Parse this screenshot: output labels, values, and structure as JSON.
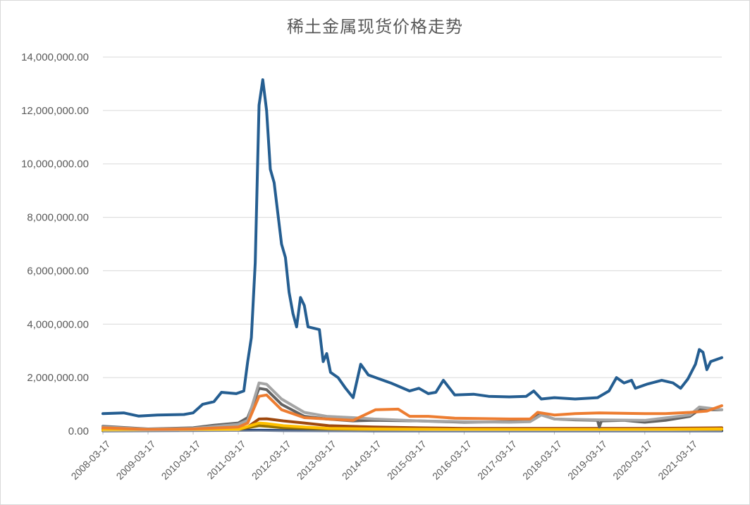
{
  "chart_data": {
    "type": "line",
    "title": "稀土金属现货价格走势",
    "xlabel": "",
    "ylabel": "",
    "ylim": [
      0,
      14000000
    ],
    "y_ticks": [
      "0.00",
      "2,000,000.00",
      "4,000,000.00",
      "6,000,000.00",
      "8,000,000.00",
      "10,000,000.00",
      "12,000,000.00",
      "14,000,000.00"
    ],
    "x_range": [
      "2008-03-17",
      "2021-11-30"
    ],
    "x_ticks": [
      "2008-03-17",
      "2009-03-17",
      "2010-03-17",
      "2011-03-17",
      "2012-03-17",
      "2013-03-17",
      "2014-03-17",
      "2015-03-17",
      "2016-03-17",
      "2017-03-17",
      "2018-03-17",
      "2019-03-17",
      "2020-03-17",
      "2021-03-17"
    ],
    "grid": true,
    "legend": "none",
    "series": [
      {
        "color": "#255e91",
        "points": [
          [
            "2008-03-17",
            650000
          ],
          [
            "2008-09-01",
            680000
          ],
          [
            "2009-01-01",
            560000
          ],
          [
            "2009-06-01",
            600000
          ],
          [
            "2010-01-01",
            620000
          ],
          [
            "2010-03-17",
            680000
          ],
          [
            "2010-06-01",
            1000000
          ],
          [
            "2010-09-01",
            1100000
          ],
          [
            "2010-11-01",
            1450000
          ],
          [
            "2011-03-01",
            1400000
          ],
          [
            "2011-05-01",
            1500000
          ],
          [
            "2011-06-01",
            2600000
          ],
          [
            "2011-07-01",
            3500000
          ],
          [
            "2011-08-01",
            6300000
          ],
          [
            "2011-09-01",
            12200000
          ],
          [
            "2011-10-01",
            13150000
          ],
          [
            "2011-11-01",
            12000000
          ],
          [
            "2011-12-01",
            9800000
          ],
          [
            "2012-01-01",
            9300000
          ],
          [
            "2012-03-01",
            7000000
          ],
          [
            "2012-04-01",
            6500000
          ],
          [
            "2012-05-01",
            5200000
          ],
          [
            "2012-06-01",
            4400000
          ],
          [
            "2012-07-01",
            3900000
          ],
          [
            "2012-08-01",
            5000000
          ],
          [
            "2012-09-01",
            4700000
          ],
          [
            "2012-10-01",
            3900000
          ],
          [
            "2013-01-01",
            3800000
          ],
          [
            "2013-02-01",
            2600000
          ],
          [
            "2013-03-01",
            2900000
          ],
          [
            "2013-04-01",
            2200000
          ],
          [
            "2013-06-01",
            2000000
          ],
          [
            "2013-08-01",
            1600000
          ],
          [
            "2013-10-01",
            1250000
          ],
          [
            "2013-12-01",
            2500000
          ],
          [
            "2014-02-01",
            2100000
          ],
          [
            "2014-05-01",
            1950000
          ],
          [
            "2014-08-01",
            1800000
          ],
          [
            "2015-01-01",
            1500000
          ],
          [
            "2015-03-17",
            1600000
          ],
          [
            "2015-06-01",
            1400000
          ],
          [
            "2015-08-01",
            1450000
          ],
          [
            "2015-10-01",
            1900000
          ],
          [
            "2016-01-01",
            1350000
          ],
          [
            "2016-06-01",
            1380000
          ],
          [
            "2016-10-01",
            1300000
          ],
          [
            "2017-03-17",
            1280000
          ],
          [
            "2017-08-01",
            1300000
          ],
          [
            "2017-10-01",
            1500000
          ],
          [
            "2017-12-01",
            1200000
          ],
          [
            "2018-03-17",
            1250000
          ],
          [
            "2018-09-01",
            1200000
          ],
          [
            "2019-03-01",
            1250000
          ],
          [
            "2019-06-01",
            1500000
          ],
          [
            "2019-08-01",
            2000000
          ],
          [
            "2019-10-01",
            1800000
          ],
          [
            "2019-12-01",
            1900000
          ],
          [
            "2020-01-01",
            1600000
          ],
          [
            "2020-04-01",
            1750000
          ],
          [
            "2020-08-01",
            1900000
          ],
          [
            "2020-11-01",
            1800000
          ],
          [
            "2021-01-01",
            1600000
          ],
          [
            "2021-03-01",
            1950000
          ],
          [
            "2021-05-01",
            2500000
          ],
          [
            "2021-06-01",
            3050000
          ],
          [
            "2021-07-01",
            2950000
          ],
          [
            "2021-08-01",
            2300000
          ],
          [
            "2021-09-01",
            2600000
          ],
          [
            "2021-11-30",
            2750000
          ]
        ]
      },
      {
        "color": "#ed7d31",
        "points": [
          [
            "2008-03-17",
            120000
          ],
          [
            "2009-03-17",
            60000
          ],
          [
            "2010-03-17",
            80000
          ],
          [
            "2011-03-17",
            150000
          ],
          [
            "2011-06-01",
            300000
          ],
          [
            "2011-09-01",
            1300000
          ],
          [
            "2011-11-01",
            1350000
          ],
          [
            "2012-03-01",
            800000
          ],
          [
            "2012-09-01",
            500000
          ],
          [
            "2013-03-01",
            450000
          ],
          [
            "2013-10-01",
            400000
          ],
          [
            "2014-01-01",
            600000
          ],
          [
            "2014-04-01",
            800000
          ],
          [
            "2014-10-01",
            820000
          ],
          [
            "2015-01-01",
            550000
          ],
          [
            "2015-06-01",
            550000
          ],
          [
            "2016-01-01",
            480000
          ],
          [
            "2017-03-17",
            450000
          ],
          [
            "2017-09-01",
            450000
          ],
          [
            "2017-11-01",
            700000
          ],
          [
            "2018-03-17",
            600000
          ],
          [
            "2018-09-01",
            650000
          ],
          [
            "2019-03-17",
            680000
          ],
          [
            "2020-03-17",
            650000
          ],
          [
            "2020-09-01",
            650000
          ],
          [
            "2021-03-17",
            700000
          ],
          [
            "2021-08-01",
            750000
          ],
          [
            "2021-11-30",
            950000
          ]
        ]
      },
      {
        "color": "#a5a5a5",
        "points": [
          [
            "2008-03-17",
            150000
          ],
          [
            "2009-03-17",
            70000
          ],
          [
            "2010-03-17",
            100000
          ],
          [
            "2011-03-17",
            250000
          ],
          [
            "2011-06-01",
            400000
          ],
          [
            "2011-09-01",
            1800000
          ],
          [
            "2011-11-01",
            1750000
          ],
          [
            "2012-03-01",
            1200000
          ],
          [
            "2012-09-01",
            700000
          ],
          [
            "2013-03-01",
            550000
          ],
          [
            "2013-10-01",
            500000
          ],
          [
            "2014-03-17",
            450000
          ],
          [
            "2015-03-17",
            380000
          ],
          [
            "2016-03-17",
            350000
          ],
          [
            "2017-03-17",
            330000
          ],
          [
            "2017-09-01",
            350000
          ],
          [
            "2017-12-01",
            600000
          ],
          [
            "2018-03-17",
            450000
          ],
          [
            "2019-03-17",
            420000
          ],
          [
            "2020-03-17",
            400000
          ],
          [
            "2021-03-17",
            600000
          ],
          [
            "2021-06-01",
            900000
          ],
          [
            "2021-11-30",
            800000
          ]
        ]
      },
      {
        "color": "#636363",
        "points": [
          [
            "2008-03-17",
            180000
          ],
          [
            "2009-03-17",
            80000
          ],
          [
            "2010-03-17",
            120000
          ],
          [
            "2010-09-01",
            220000
          ],
          [
            "2011-03-17",
            300000
          ],
          [
            "2011-06-01",
            500000
          ],
          [
            "2011-09-01",
            1600000
          ],
          [
            "2011-11-01",
            1550000
          ],
          [
            "2012-03-01",
            1000000
          ],
          [
            "2012-09-01",
            550000
          ],
          [
            "2013-03-01",
            450000
          ],
          [
            "2013-10-01",
            380000
          ],
          [
            "2014-03-17",
            400000
          ],
          [
            "2015-03-17",
            380000
          ],
          [
            "2016-03-17",
            330000
          ],
          [
            "2017-03-17",
            350000
          ],
          [
            "2017-09-01",
            380000
          ],
          [
            "2017-11-01",
            650000
          ],
          [
            "2018-03-17",
            450000
          ],
          [
            "2018-09-01",
            420000
          ],
          [
            "2019-03-01",
            400000
          ],
          [
            "2019-03-15",
            150000
          ],
          [
            "2019-04-01",
            380000
          ],
          [
            "2019-10-01",
            400000
          ],
          [
            "2020-03-17",
            330000
          ],
          [
            "2020-09-01",
            400000
          ],
          [
            "2021-03-17",
            550000
          ],
          [
            "2021-06-01",
            800000
          ],
          [
            "2021-11-30",
            800000
          ]
        ]
      },
      {
        "color": "#ffc000",
        "points": [
          [
            "2008-03-17",
            30000
          ],
          [
            "2010-03-17",
            40000
          ],
          [
            "2011-03-17",
            60000
          ],
          [
            "2011-09-01",
            300000
          ],
          [
            "2011-11-01",
            280000
          ],
          [
            "2012-03-17",
            200000
          ],
          [
            "2012-09-01",
            150000
          ],
          [
            "2013-03-17",
            100000
          ],
          [
            "2014-03-17",
            80000
          ],
          [
            "2016-03-17",
            60000
          ],
          [
            "2018-03-17",
            60000
          ],
          [
            "2020-03-17",
            60000
          ],
          [
            "2021-03-17",
            70000
          ],
          [
            "2021-11-30",
            80000
          ]
        ]
      },
      {
        "color": "#9e480e",
        "points": [
          [
            "2008-03-17",
            90000
          ],
          [
            "2009-03-17",
            40000
          ],
          [
            "2010-03-17",
            50000
          ],
          [
            "2011-03-17",
            100000
          ],
          [
            "2011-06-01",
            150000
          ],
          [
            "2011-09-01",
            450000
          ],
          [
            "2011-11-01",
            460000
          ],
          [
            "2012-03-17",
            380000
          ],
          [
            "2012-09-01",
            300000
          ],
          [
            "2013-03-17",
            200000
          ],
          [
            "2014-03-17",
            150000
          ],
          [
            "2015-03-17",
            120000
          ],
          [
            "2016-03-17",
            100000
          ],
          [
            "2017-03-17",
            100000
          ],
          [
            "2018-03-17",
            100000
          ],
          [
            "2019-03-17",
            100000
          ],
          [
            "2020-03-17",
            100000
          ],
          [
            "2021-03-17",
            110000
          ],
          [
            "2021-11-30",
            120000
          ]
        ]
      },
      {
        "color": "#997300",
        "points": [
          [
            "2008-03-17",
            50000
          ],
          [
            "2010-03-17",
            50000
          ],
          [
            "2011-03-17",
            60000
          ],
          [
            "2011-09-01",
            200000
          ],
          [
            "2011-11-01",
            180000
          ],
          [
            "2012-03-17",
            120000
          ],
          [
            "2013-03-17",
            80000
          ],
          [
            "2014-03-17",
            60000
          ],
          [
            "2016-03-17",
            50000
          ],
          [
            "2018-03-17",
            50000
          ],
          [
            "2020-03-17",
            50000
          ],
          [
            "2021-11-30",
            60000
          ]
        ]
      },
      {
        "color": "#264478",
        "points": [
          [
            "2008-03-17",
            10000
          ],
          [
            "2011-09-01",
            30000
          ],
          [
            "2012-03-17",
            20000
          ],
          [
            "2014-03-17",
            10000
          ],
          [
            "2021-11-30",
            10000
          ]
        ]
      }
    ]
  }
}
